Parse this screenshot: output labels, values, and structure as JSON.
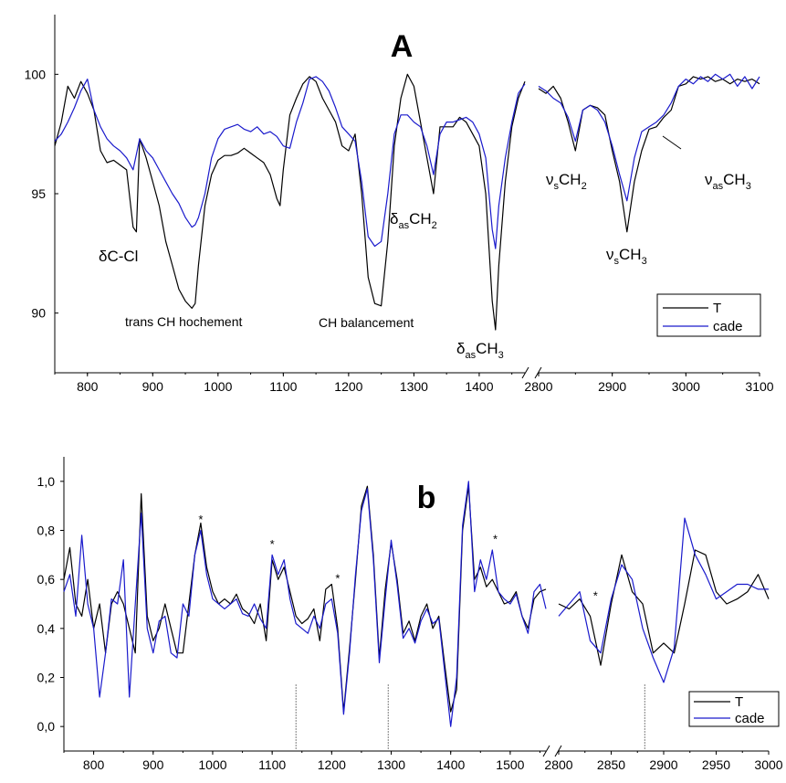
{
  "colors": {
    "T": "#000000",
    "cade": "#1a1acc"
  },
  "chart_data": [
    {
      "type": "line",
      "title": "A",
      "xlabel": "",
      "ylabel": "",
      "x_break": [
        1470,
        2800
      ],
      "xlim_left": [
        750,
        1470
      ],
      "xlim_right": [
        2800,
        3100
      ],
      "ylim": [
        87.5,
        102.5
      ],
      "grid": false,
      "legend_position": "bottom-right",
      "x_ticks": [
        "800",
        "900",
        "1000",
        "1100",
        "1200",
        "1300",
        "1400",
        "2800",
        "2900",
        "3000",
        "3100"
      ],
      "x_tick_values": [
        800,
        900,
        1000,
        1100,
        1200,
        1300,
        1400,
        2800,
        2900,
        3000,
        3100
      ],
      "y_ticks": [
        "90",
        "95",
        "100"
      ],
      "y_tick_values": [
        90,
        95,
        100
      ],
      "series": [
        {
          "name": "T",
          "x": [
            750,
            760,
            770,
            780,
            790,
            800,
            810,
            820,
            830,
            840,
            850,
            860,
            870,
            875,
            880,
            890,
            900,
            910,
            920,
            930,
            940,
            950,
            960,
            965,
            970,
            980,
            990,
            1000,
            1010,
            1020,
            1030,
            1040,
            1050,
            1060,
            1070,
            1080,
            1090,
            1095,
            1100,
            1110,
            1120,
            1130,
            1140,
            1150,
            1160,
            1170,
            1180,
            1190,
            1200,
            1210,
            1220,
            1230,
            1240,
            1250,
            1260,
            1270,
            1280,
            1290,
            1300,
            1310,
            1320,
            1330,
            1340,
            1350,
            1360,
            1370,
            1380,
            1390,
            1400,
            1410,
            1420,
            1425,
            1430,
            1440,
            1450,
            1460,
            1470,
            2800,
            2810,
            2820,
            2830,
            2840,
            2850,
            2860,
            2870,
            2880,
            2890,
            2900,
            2910,
            2920,
            2930,
            2940,
            2950,
            2960,
            2970,
            2980,
            2990,
            3000,
            3010,
            3020,
            3030,
            3040,
            3050,
            3060,
            3070,
            3080,
            3090,
            3100
          ],
          "y": [
            97.0,
            98.0,
            99.5,
            99.0,
            99.7,
            99.2,
            98.5,
            96.8,
            96.3,
            96.4,
            96.2,
            96.0,
            93.6,
            93.4,
            97.3,
            96.5,
            95.5,
            94.5,
            93.0,
            92.0,
            91.0,
            90.5,
            90.2,
            90.4,
            92.0,
            94.5,
            95.8,
            96.4,
            96.6,
            96.6,
            96.7,
            96.9,
            96.7,
            96.5,
            96.3,
            95.8,
            94.8,
            94.5,
            96.0,
            98.3,
            99.0,
            99.6,
            99.9,
            99.7,
            99.0,
            98.5,
            98.0,
            97.0,
            96.8,
            97.5,
            95.0,
            91.5,
            90.4,
            90.3,
            93.0,
            97.0,
            99.0,
            100.0,
            99.5,
            98.0,
            96.5,
            95.0,
            97.8,
            97.8,
            97.8,
            98.2,
            98.0,
            97.5,
            97.0,
            95.0,
            90.5,
            89.3,
            92.0,
            95.5,
            97.8,
            99.0,
            99.7,
            99.4,
            99.2,
            99.5,
            99.0,
            98.0,
            96.8,
            98.5,
            98.7,
            98.6,
            98.3,
            96.8,
            95.5,
            93.4,
            95.5,
            96.8,
            97.7,
            97.8,
            98.2,
            98.5,
            99.5,
            99.6,
            99.9,
            99.8,
            99.9,
            99.7,
            99.8,
            99.6,
            99.8,
            99.7,
            99.8,
            99.6
          ]
        },
        {
          "name": "cade",
          "x": [
            750,
            760,
            770,
            780,
            790,
            800,
            810,
            820,
            830,
            840,
            850,
            860,
            870,
            880,
            890,
            900,
            910,
            920,
            930,
            940,
            950,
            960,
            965,
            970,
            980,
            990,
            1000,
            1010,
            1020,
            1030,
            1040,
            1050,
            1060,
            1070,
            1080,
            1090,
            1100,
            1110,
            1120,
            1130,
            1140,
            1150,
            1160,
            1170,
            1180,
            1190,
            1200,
            1210,
            1220,
            1230,
            1240,
            1250,
            1260,
            1270,
            1280,
            1290,
            1300,
            1310,
            1320,
            1330,
            1340,
            1350,
            1360,
            1370,
            1380,
            1390,
            1400,
            1410,
            1420,
            1425,
            1430,
            1440,
            1450,
            1460,
            1470,
            2800,
            2810,
            2820,
            2830,
            2840,
            2850,
            2860,
            2870,
            2880,
            2890,
            2900,
            2910,
            2920,
            2930,
            2940,
            2950,
            2960,
            2970,
            2980,
            2990,
            3000,
            3010,
            3020,
            3030,
            3040,
            3050,
            3060,
            3070,
            3080,
            3090,
            3100
          ],
          "y": [
            97.2,
            97.5,
            98.0,
            98.6,
            99.3,
            99.8,
            98.5,
            97.8,
            97.3,
            97.0,
            96.8,
            96.5,
            96.0,
            97.3,
            96.8,
            96.5,
            96.0,
            95.5,
            95.0,
            94.6,
            94.0,
            93.6,
            93.7,
            94.0,
            95.0,
            96.5,
            97.3,
            97.7,
            97.8,
            97.9,
            97.7,
            97.6,
            97.8,
            97.5,
            97.6,
            97.4,
            97.0,
            96.9,
            98.0,
            98.8,
            99.8,
            99.9,
            99.7,
            99.3,
            98.6,
            97.8,
            97.5,
            97.2,
            95.5,
            93.2,
            92.8,
            93.0,
            95.0,
            97.5,
            98.3,
            98.3,
            98.0,
            97.8,
            97.0,
            95.8,
            97.5,
            98.0,
            98.0,
            98.1,
            98.2,
            98.0,
            97.5,
            96.5,
            93.5,
            92.7,
            94.5,
            96.5,
            98.0,
            99.2,
            99.6,
            99.5,
            99.3,
            99.0,
            98.8,
            98.2,
            97.2,
            98.5,
            98.7,
            98.5,
            98.0,
            97.0,
            95.8,
            94.7,
            96.5,
            97.6,
            97.8,
            98.0,
            98.3,
            98.8,
            99.5,
            99.8,
            99.6,
            99.9,
            99.7,
            100.0,
            99.8,
            100.0,
            99.5,
            99.9,
            99.4,
            99.9
          ]
        }
      ],
      "annotations": [
        {
          "text": "δC-Cl"
        },
        {
          "text": "trans CH hochement"
        },
        {
          "text": "CH balancement"
        },
        {
          "base": "δ",
          "sub": "as",
          "main": "CH",
          "sub2": "2"
        },
        {
          "base": "δ",
          "sub": "as",
          "main": "CH",
          "sub2": "3"
        },
        {
          "base": "ν",
          "sub": "s",
          "main": "CH",
          "sub2": "2"
        },
        {
          "base": "ν",
          "sub": "s",
          "main": "CH",
          "sub2": "3"
        },
        {
          "base": "ν",
          "sub": "as",
          "main": "CH",
          "sub2": "3"
        }
      ]
    },
    {
      "type": "line",
      "title": "b",
      "xlabel": "",
      "ylabel": "",
      "x_break": [
        1560,
        2800
      ],
      "xlim_left": [
        750,
        1560
      ],
      "xlim_right": [
        2800,
        3000
      ],
      "ylim": [
        -0.1,
        1.1
      ],
      "grid": false,
      "legend_position": "bottom-right",
      "x_ticks": [
        "800",
        "900",
        "1000",
        "1100",
        "1200",
        "1300",
        "1400",
        "1500",
        "2800",
        "2850",
        "2900",
        "2950",
        "3000"
      ],
      "x_tick_values": [
        800,
        900,
        1000,
        1100,
        1200,
        1300,
        1400,
        1500,
        2800,
        2850,
        2900,
        2950,
        3000
      ],
      "y_ticks": [
        "0,0",
        "0,2",
        "0,4",
        "0,6",
        "0,8",
        "1,0"
      ],
      "y_tick_values": [
        0.0,
        0.2,
        0.4,
        0.6,
        0.8,
        1.0
      ],
      "markers": [
        "*",
        "*",
        "*",
        "*",
        "*"
      ],
      "marker_x": [
        980,
        1100,
        1210,
        1475,
        2835
      ],
      "marker_y": [
        0.85,
        0.75,
        0.61,
        0.77,
        0.54
      ],
      "dotted_lines_x": [
        1140,
        1295,
        2882
      ],
      "series": [
        {
          "name": "T",
          "x": [
            750,
            760,
            770,
            780,
            790,
            800,
            810,
            820,
            830,
            840,
            850,
            860,
            870,
            880,
            890,
            900,
            910,
            920,
            930,
            940,
            950,
            960,
            970,
            980,
            990,
            1000,
            1010,
            1020,
            1030,
            1040,
            1050,
            1060,
            1070,
            1080,
            1090,
            1100,
            1110,
            1120,
            1130,
            1140,
            1150,
            1160,
            1170,
            1180,
            1190,
            1200,
            1210,
            1220,
            1230,
            1240,
            1250,
            1260,
            1270,
            1280,
            1290,
            1300,
            1310,
            1320,
            1330,
            1340,
            1350,
            1360,
            1370,
            1380,
            1390,
            1400,
            1410,
            1420,
            1430,
            1440,
            1450,
            1460,
            1470,
            1480,
            1490,
            1500,
            1510,
            1520,
            1530,
            1540,
            1550,
            1560,
            2800,
            2810,
            2820,
            2830,
            2840,
            2850,
            2860,
            2870,
            2880,
            2890,
            2900,
            2910,
            2920,
            2930,
            2940,
            2950,
            2960,
            2970,
            2980,
            2990,
            3000
          ],
          "y": [
            0.6,
            0.73,
            0.5,
            0.45,
            0.6,
            0.4,
            0.5,
            0.3,
            0.5,
            0.55,
            0.5,
            0.4,
            0.3,
            0.95,
            0.45,
            0.35,
            0.4,
            0.5,
            0.4,
            0.3,
            0.3,
            0.5,
            0.7,
            0.83,
            0.65,
            0.55,
            0.5,
            0.52,
            0.5,
            0.54,
            0.48,
            0.46,
            0.42,
            0.5,
            0.35,
            0.68,
            0.6,
            0.65,
            0.55,
            0.45,
            0.42,
            0.44,
            0.48,
            0.35,
            0.56,
            0.58,
            0.4,
            0.06,
            0.32,
            0.6,
            0.9,
            0.98,
            0.7,
            0.28,
            0.56,
            0.75,
            0.6,
            0.38,
            0.43,
            0.35,
            0.45,
            0.5,
            0.4,
            0.45,
            0.25,
            0.06,
            0.15,
            0.8,
            0.98,
            0.6,
            0.65,
            0.57,
            0.6,
            0.55,
            0.5,
            0.51,
            0.55,
            0.45,
            0.4,
            0.52,
            0.55,
            0.56,
            0.5,
            0.48,
            0.52,
            0.45,
            0.25,
            0.5,
            0.7,
            0.55,
            0.5,
            0.3,
            0.34,
            0.3,
            0.5,
            0.72,
            0.7,
            0.55,
            0.5,
            0.52,
            0.55,
            0.62,
            0.52
          ]
        },
        {
          "name": "cade",
          "x": [
            750,
            760,
            770,
            780,
            790,
            800,
            810,
            820,
            830,
            840,
            850,
            860,
            870,
            880,
            890,
            900,
            910,
            920,
            930,
            940,
            950,
            960,
            970,
            980,
            990,
            1000,
            1010,
            1020,
            1030,
            1040,
            1050,
            1060,
            1070,
            1080,
            1090,
            1100,
            1110,
            1120,
            1130,
            1140,
            1150,
            1160,
            1170,
            1180,
            1190,
            1200,
            1210,
            1220,
            1230,
            1240,
            1250,
            1260,
            1270,
            1280,
            1290,
            1300,
            1310,
            1320,
            1330,
            1340,
            1350,
            1360,
            1370,
            1380,
            1390,
            1400,
            1410,
            1420,
            1430,
            1440,
            1450,
            1460,
            1470,
            1480,
            1490,
            1500,
            1510,
            1520,
            1530,
            1540,
            1550,
            1560,
            2800,
            2810,
            2820,
            2830,
            2840,
            2850,
            2860,
            2870,
            2880,
            2890,
            2900,
            2910,
            2920,
            2930,
            2940,
            2950,
            2960,
            2970,
            2980,
            2990,
            3000
          ],
          "y": [
            0.55,
            0.62,
            0.45,
            0.78,
            0.5,
            0.4,
            0.12,
            0.3,
            0.52,
            0.5,
            0.68,
            0.12,
            0.5,
            0.87,
            0.4,
            0.3,
            0.43,
            0.45,
            0.3,
            0.28,
            0.5,
            0.45,
            0.7,
            0.8,
            0.62,
            0.52,
            0.5,
            0.48,
            0.5,
            0.52,
            0.46,
            0.45,
            0.5,
            0.44,
            0.4,
            0.7,
            0.62,
            0.68,
            0.52,
            0.42,
            0.4,
            0.38,
            0.45,
            0.4,
            0.5,
            0.52,
            0.38,
            0.05,
            0.3,
            0.62,
            0.88,
            0.97,
            0.68,
            0.26,
            0.52,
            0.76,
            0.58,
            0.36,
            0.4,
            0.34,
            0.43,
            0.48,
            0.42,
            0.44,
            0.22,
            0.0,
            0.2,
            0.82,
            1.0,
            0.55,
            0.68,
            0.6,
            0.72,
            0.55,
            0.52,
            0.5,
            0.54,
            0.45,
            0.38,
            0.55,
            0.58,
            0.48,
            0.45,
            0.5,
            0.55,
            0.35,
            0.3,
            0.52,
            0.66,
            0.6,
            0.4,
            0.28,
            0.18,
            0.32,
            0.85,
            0.7,
            0.62,
            0.52,
            0.55,
            0.58,
            0.58,
            0.56,
            0.56
          ]
        }
      ]
    }
  ]
}
